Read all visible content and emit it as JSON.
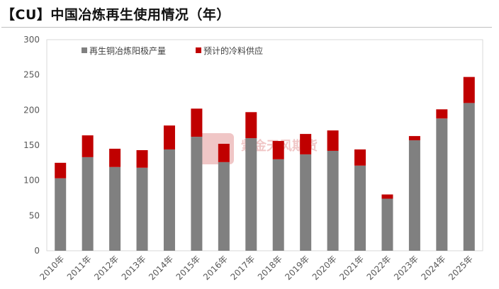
{
  "title": "【CU】中国冶炼再生使用情况（年）",
  "chart_data": {
    "type": "bar",
    "stacked": true,
    "categories": [
      "2010年",
      "2011年",
      "2012年",
      "2013年",
      "2014年",
      "2015年",
      "2016年",
      "2017年",
      "2018年",
      "2019年",
      "2020年",
      "2021年",
      "2022年",
      "2023年",
      "2024年",
      "2025年"
    ],
    "series": [
      {
        "name": "再生铜冶炼阳极产量",
        "color": "#808080",
        "values": [
          103,
          133,
          119,
          118,
          144,
          162,
          126,
          160,
          130,
          137,
          142,
          121,
          74,
          157,
          188,
          210
        ]
      },
      {
        "name": "预计的冷料供应",
        "color": "#c00000",
        "values": [
          22,
          31,
          26,
          25,
          34,
          40,
          26,
          37,
          26,
          29,
          29,
          23,
          6,
          6,
          13,
          37
        ]
      }
    ],
    "ylim": [
      0,
      300
    ],
    "yticks": [
      0,
      50,
      100,
      150,
      200,
      250,
      300
    ],
    "legend_position": "top-left",
    "grid": false,
    "watermark": "紫金天风期货"
  }
}
